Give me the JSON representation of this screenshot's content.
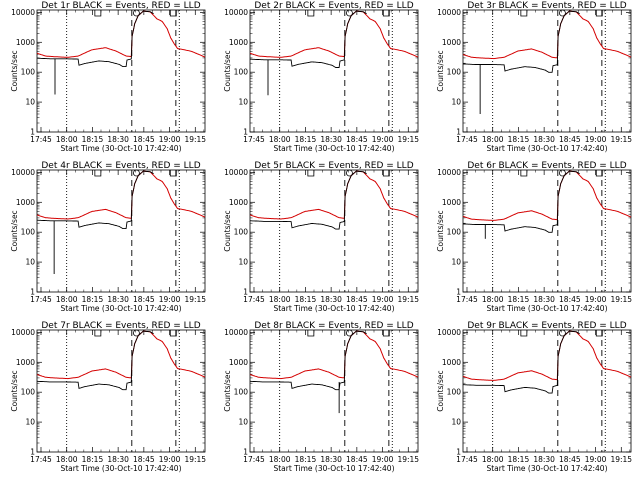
{
  "chart_data": {
    "type": "line",
    "layout": "3x3 grid of line plots",
    "shared": {
      "xlabel": "Start Time (30-Oct-10 17:42:40)",
      "ylabel": "Counts/sec",
      "x_tick_labels": [
        "17:45",
        "18:00",
        "18:15",
        "18:30",
        "18:45",
        "19:00",
        "19:15"
      ],
      "x_tick_minutes": [
        2.33,
        17.33,
        32.33,
        47.33,
        62.33,
        77.33,
        92.33
      ],
      "xlim_minutes_after_start": [
        0,
        98
      ],
      "y_scale": "log",
      "ylim": [
        1,
        12000
      ],
      "y_tick_values": [
        1,
        10,
        100,
        1000,
        10000
      ],
      "y_tick_labels": [
        "1",
        "10",
        "100",
        "1000",
        "10000"
      ],
      "series_colors": {
        "events": "#000000",
        "lld": "#d40000"
      },
      "vertical_markers": [
        {
          "style": "dotted",
          "minute": 17.3
        },
        {
          "style": "dashed",
          "minute": 55.3
        },
        {
          "style": "dashed",
          "minute": 81.0
        },
        {
          "style": "dotted",
          "minute": 83.0
        }
      ],
      "top_markers": [
        "bracket",
        "circle",
        "bracket"
      ]
    },
    "panels": [
      {
        "title": "Det 1r BLACK = Events, RED = LLD",
        "dip_minute": 10.5,
        "dip_value": 18,
        "black_level": 280,
        "red_level": 330,
        "red_peak": 11000
      },
      {
        "title": "Det 2r BLACK = Events, RED = LLD",
        "dip_minute": 10.5,
        "dip_value": 17,
        "black_level": 260,
        "red_level": 330,
        "red_peak": 11000
      },
      {
        "title": "Det 3r BLACK = Events, RED = LLD",
        "dip_minute": 10.0,
        "dip_value": 4,
        "black_level": 180,
        "red_level": 300,
        "red_peak": 11000
      },
      {
        "title": "Det 4r BLACK = Events, RED = LLD",
        "dip_minute": 10.0,
        "dip_value": 4,
        "black_level": 240,
        "red_level": 290,
        "red_peak": 11000
      },
      {
        "title": "Det 5r BLACK = Events, RED = LLD",
        "dip_minute": null,
        "dip_value": null,
        "black_level": 230,
        "red_level": 290,
        "red_peak": 11000
      },
      {
        "title": "Det 6r BLACK = Events, RED = LLD",
        "dip_minute": 13.0,
        "dip_value": 60,
        "black_level": 180,
        "red_level": 260,
        "red_peak": 11000
      },
      {
        "title": "Det 7r BLACK = Events, RED = LLD",
        "dip_minute": null,
        "dip_value": null,
        "black_level": 220,
        "red_level": 300,
        "red_peak": 11000
      },
      {
        "title": "Det 8r BLACK = Events, RED = LLD",
        "dip_minute": 52.0,
        "dip_value": 20,
        "black_level": 220,
        "red_level": 300,
        "red_peak": 11000
      },
      {
        "title": "Det 9r BLACK = Events, RED = LLD",
        "dip_minute": null,
        "dip_value": null,
        "black_level": 170,
        "red_level": 260,
        "red_peak": 11000
      }
    ]
  }
}
